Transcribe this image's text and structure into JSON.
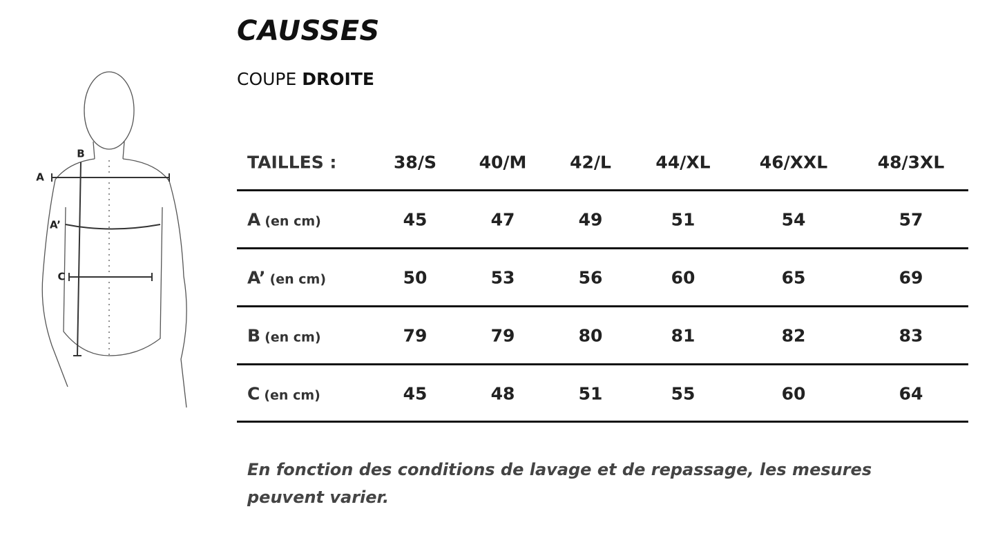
{
  "header": {
    "title": "CAUSSES",
    "subtitle": {
      "prefix": "COUPE",
      "emphasis": "DROITE"
    }
  },
  "illustration": {
    "labels": [
      "A",
      "B",
      "A’",
      "C"
    ]
  },
  "table": {
    "header": {
      "label": "TAILLES :",
      "sizes": [
        "38/S",
        "40/M",
        "42/L",
        "44/XL",
        "46/XXL",
        "48/3XL"
      ]
    },
    "rows": [
      {
        "label": "A",
        "unit": "(en cm)",
        "values": [
          45,
          47,
          49,
          51,
          54,
          57
        ]
      },
      {
        "label": "A’",
        "unit": "(en cm)",
        "values": [
          50,
          53,
          56,
          60,
          65,
          69
        ]
      },
      {
        "label": "B",
        "unit": "(en cm)",
        "values": [
          79,
          79,
          80,
          81,
          82,
          83
        ]
      },
      {
        "label": "C",
        "unit": "(en cm)",
        "values": [
          45,
          48,
          51,
          55,
          60,
          64
        ]
      }
    ]
  },
  "note": "En fonction des conditions de lavage et de repassage, les mesures peuvent varier."
}
